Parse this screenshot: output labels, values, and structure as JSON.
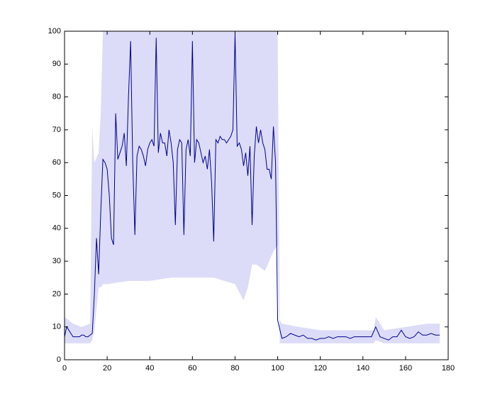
{
  "chart_data": {
    "type": "line",
    "x": [
      0,
      1,
      2,
      3,
      4,
      5,
      6,
      7,
      8,
      9,
      10,
      11,
      12,
      13,
      14,
      15,
      16,
      17,
      18,
      19,
      20,
      21,
      22,
      23,
      24,
      25,
      26,
      27,
      28,
      29,
      30,
      31,
      32,
      33,
      34,
      35,
      36,
      37,
      38,
      39,
      40,
      41,
      42,
      43,
      44,
      45,
      46,
      47,
      48,
      49,
      50,
      51,
      52,
      53,
      54,
      55,
      56,
      57,
      58,
      59,
      60,
      61,
      62,
      63,
      64,
      65,
      66,
      67,
      68,
      69,
      70,
      71,
      72,
      73,
      74,
      75,
      76,
      77,
      78,
      79,
      80,
      81,
      82,
      83,
      84,
      85,
      86,
      87,
      88,
      89,
      90,
      91,
      92,
      93,
      94,
      95,
      96,
      97,
      98,
      99,
      100,
      102,
      104,
      106,
      108,
      110,
      112,
      114,
      116,
      118,
      120,
      122,
      124,
      126,
      128,
      130,
      132,
      134,
      136,
      138,
      140,
      142,
      144,
      146,
      148,
      150,
      152,
      154,
      156,
      158,
      160,
      162,
      164,
      166,
      168,
      170,
      172,
      174,
      176
    ],
    "values": [
      7,
      10,
      9,
      8,
      7,
      7,
      7,
      7,
      7.5,
      7.5,
      7,
      7,
      7.5,
      8,
      20,
      37,
      26,
      45,
      61,
      60,
      58,
      50,
      37,
      35,
      75,
      61,
      63,
      65,
      69,
      59,
      80,
      97,
      60,
      38,
      62,
      65,
      64,
      62,
      59,
      64,
      66,
      67,
      65,
      98,
      63,
      69,
      66,
      66,
      62,
      70,
      66,
      60,
      41,
      64,
      67,
      66,
      38,
      64,
      67,
      62,
      97,
      60,
      67,
      66,
      63,
      60,
      62,
      58,
      64,
      54,
      36,
      67,
      66,
      68,
      67,
      67,
      66,
      67,
      68,
      70,
      99,
      65,
      66,
      64,
      59,
      63,
      56,
      65,
      41,
      62,
      71,
      66,
      70,
      66,
      64,
      58,
      58,
      55,
      71,
      60,
      12,
      6.5,
      7,
      8,
      7.5,
      7,
      7.5,
      6.5,
      6.5,
      6,
      6.5,
      6.5,
      7,
      6.5,
      7,
      7,
      7,
      6.5,
      7,
      7,
      7,
      7,
      7,
      10,
      7,
      6.5,
      6,
      7,
      7,
      9,
      7,
      6.5,
      7,
      8.5,
      7.5,
      7.5,
      8,
      7.5,
      7.5
    ],
    "color": "#00008f",
    "band": {
      "x": [
        0,
        4,
        8,
        12,
        13,
        14,
        16,
        17,
        18,
        20,
        30,
        40,
        50,
        60,
        70,
        80,
        84,
        86,
        88,
        90,
        94,
        98,
        100,
        101,
        102,
        110,
        120,
        130,
        140,
        145,
        146,
        150,
        160,
        170,
        176
      ],
      "upper": [
        13,
        11,
        10,
        11,
        71,
        60,
        63,
        75,
        100,
        100,
        100,
        100,
        100,
        100,
        100,
        100,
        100,
        100,
        100,
        100,
        100,
        100,
        100,
        12,
        11,
        10,
        9,
        9,
        9,
        9,
        13,
        9,
        10,
        11,
        11
      ],
      "lower": [
        5,
        5,
        5,
        5,
        6,
        9,
        22,
        22,
        23,
        23,
        24,
        24,
        25,
        25,
        25,
        23,
        18,
        22,
        29,
        29,
        27,
        33,
        35,
        5,
        5,
        5,
        5,
        5,
        5,
        5,
        6,
        5,
        5,
        5,
        5
      ],
      "color": "#dcdcf8"
    },
    "xlim": [
      0,
      180
    ],
    "ylim": [
      0,
      100
    ],
    "xticks": [
      0,
      20,
      40,
      60,
      80,
      100,
      120,
      140,
      160,
      180
    ],
    "yticks": [
      0,
      10,
      20,
      30,
      40,
      50,
      60,
      70,
      80,
      90,
      100
    ]
  }
}
